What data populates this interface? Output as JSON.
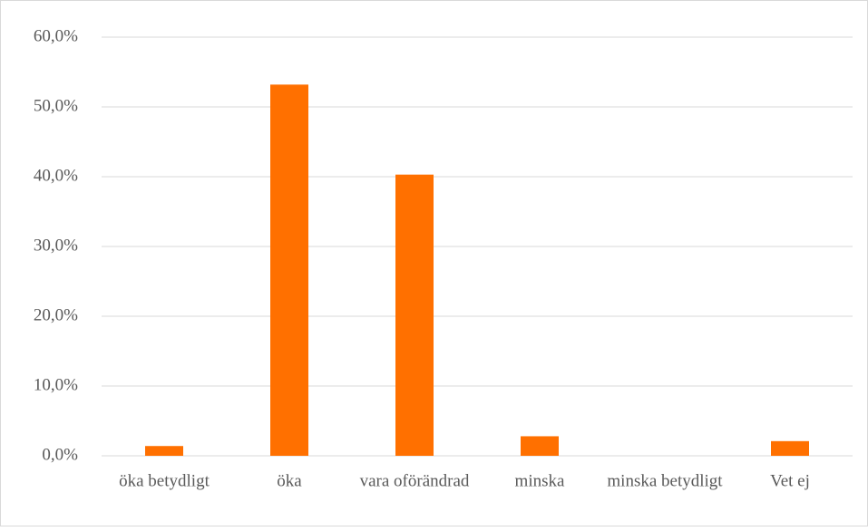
{
  "chart_data": {
    "type": "bar",
    "categories": [
      "öka betydligt",
      "öka",
      "vara oförändrad",
      "minska",
      "minska betydligt",
      "Vet ej"
    ],
    "values": [
      1.4,
      53.2,
      40.3,
      2.8,
      0,
      2.1
    ],
    "color": "#ff7000",
    "ylim": [
      0,
      60
    ],
    "yticks": [
      {
        "value": 0,
        "label": "0,0%"
      },
      {
        "value": 10,
        "label": "10,0%"
      },
      {
        "value": 20,
        "label": "20,0%"
      },
      {
        "value": 30,
        "label": "30,0%"
      },
      {
        "value": 40,
        "label": "40,0%"
      },
      {
        "value": 50,
        "label": "50,0%"
      },
      {
        "value": 60,
        "label": "60,0%"
      }
    ],
    "grid": true
  }
}
